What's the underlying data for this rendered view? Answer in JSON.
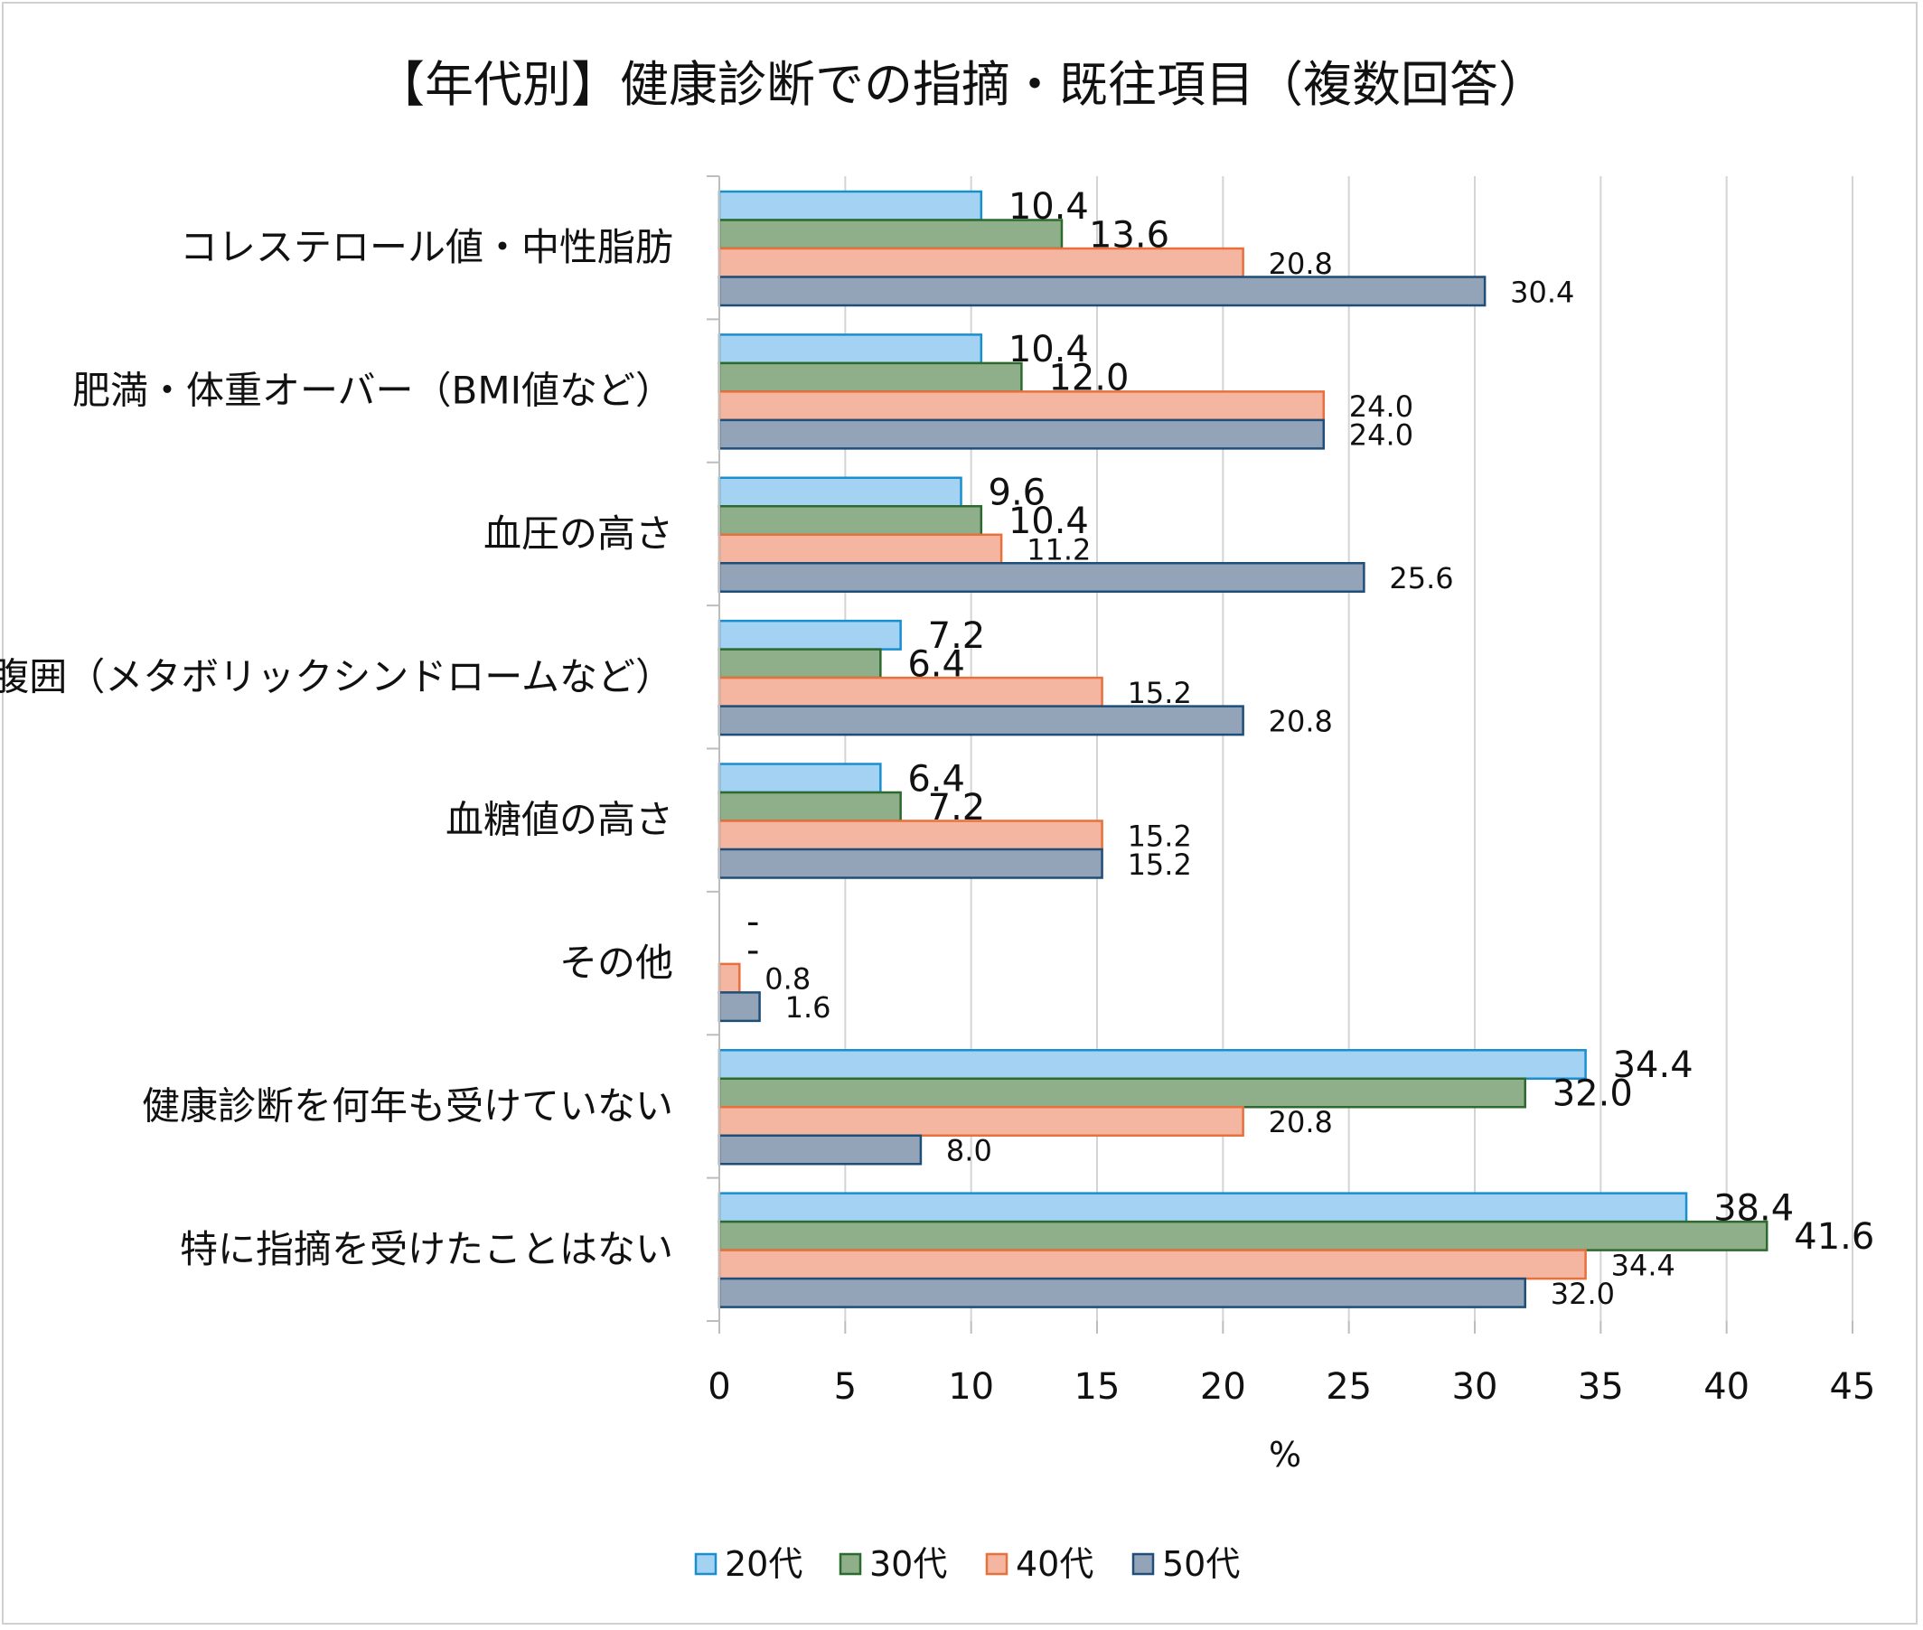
{
  "chart_data": {
    "type": "bar",
    "orientation": "horizontal",
    "title": "【年代別】健康診断での指摘・既往項目（複数回答）",
    "xlabel": "%",
    "ylabel": "",
    "xlim": [
      0,
      45
    ],
    "xticks": [
      "0",
      "5",
      "10",
      "15",
      "20",
      "25",
      "30",
      "35",
      "40",
      "45"
    ],
    "xtick_values": [
      0,
      5,
      10,
      15,
      20,
      25,
      30,
      35,
      40,
      45
    ],
    "grid": true,
    "legend_position": "bottom",
    "categories": [
      "コレステロール値・中性脂肪",
      "肥満・体重オーバー（BMI値など）",
      "血圧の高さ",
      "腹囲（メタボリックシンドロームなど）",
      "血糖値の高さ",
      "その他",
      "健康診断を何年も受けていない",
      "特に指摘を受けたことはない"
    ],
    "series": [
      {
        "name": "20代",
        "color": "#a3d2f2",
        "edge": "#1a8fd0",
        "values": [
          10.4,
          10.4,
          9.6,
          7.2,
          6.4,
          null,
          34.4,
          38.4
        ],
        "labels": [
          "10.4",
          "10.4",
          "9.6",
          "7.2",
          "6.4",
          "-",
          "34.4",
          "38.4"
        ]
      },
      {
        "name": "30代",
        "color": "#8fae8a",
        "edge": "#2d6a2d",
        "values": [
          13.6,
          12.0,
          10.4,
          6.4,
          7.2,
          null,
          32.0,
          41.6
        ],
        "labels": [
          "13.6",
          "12.0",
          "10.4",
          "6.4",
          "7.2",
          "-",
          "32.0",
          "41.6"
        ]
      },
      {
        "name": "40代",
        "color": "#f4b6a0",
        "edge": "#e8703c",
        "values": [
          20.8,
          24.0,
          11.2,
          15.2,
          15.2,
          0.8,
          20.8,
          34.4
        ],
        "labels": [
          "20.8",
          "24.0",
          "11.2",
          "15.2",
          "15.2",
          "0.8",
          "20.8",
          "34.4"
        ]
      },
      {
        "name": "50代",
        "color": "#93a3b8",
        "edge": "#1f4e79",
        "values": [
          30.4,
          24.0,
          25.6,
          20.8,
          15.2,
          1.6,
          8.0,
          32.0
        ],
        "labels": [
          "30.4",
          "24.0",
          "25.6",
          "20.8",
          "15.2",
          "1.6",
          "8.0",
          "32.0"
        ]
      }
    ]
  }
}
